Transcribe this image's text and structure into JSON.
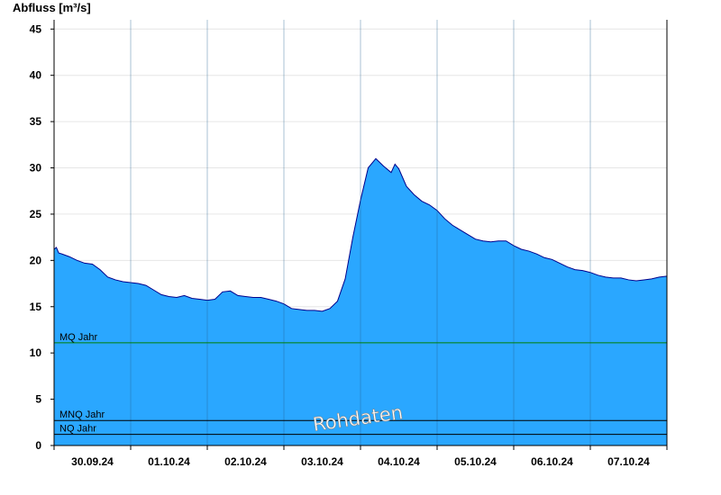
{
  "colors": {
    "fill": "#2aa7ff",
    "line": "#00008b",
    "grid": "#e6e6e6",
    "mq_line": "#008000",
    "ref_line": "#000000"
  },
  "chart_data": {
    "type": "area",
    "ylabel": "Abfluss [m³/s]",
    "ylim": [
      0,
      46
    ],
    "yticks": [
      0,
      5,
      10,
      15,
      20,
      25,
      30,
      35,
      40,
      45
    ],
    "xlim": [
      0,
      8
    ],
    "x_tick_labels": [
      "30.09.24",
      "01.10.24",
      "02.10.24",
      "03.10.24",
      "04.10.24",
      "05.10.24",
      "06.10.24",
      "07.10.24"
    ],
    "grid": true,
    "watermark": "Rohdaten",
    "reference_lines": [
      {
        "label": "MQ Jahr",
        "value": 11.1,
        "color": "#008000"
      },
      {
        "label": "MNQ Jahr",
        "value": 2.7,
        "color": "#000000"
      },
      {
        "label": "NQ Jahr",
        "value": 1.2,
        "color": "#000000"
      }
    ],
    "series": [
      {
        "x": [
          0.0,
          0.03,
          0.06,
          0.1,
          0.2,
          0.3,
          0.4,
          0.5,
          0.6,
          0.7,
          0.8,
          0.9,
          1.0,
          1.1,
          1.2,
          1.3,
          1.4,
          1.5,
          1.6,
          1.7,
          1.8,
          1.9,
          2.0,
          2.1,
          2.2,
          2.3,
          2.4,
          2.5,
          2.6,
          2.7,
          2.8,
          2.9,
          3.0,
          3.1,
          3.2,
          3.3,
          3.4,
          3.5,
          3.6,
          3.7,
          3.8,
          3.9,
          4.0,
          4.1,
          4.2,
          4.3,
          4.4,
          4.45,
          4.5,
          4.6,
          4.7,
          4.8,
          4.9,
          5.0,
          5.1,
          5.2,
          5.3,
          5.4,
          5.5,
          5.6,
          5.7,
          5.8,
          5.9,
          6.0,
          6.1,
          6.2,
          6.3,
          6.4,
          6.5,
          6.6,
          6.7,
          6.8,
          6.9,
          7.0,
          7.1,
          7.2,
          7.3,
          7.4,
          7.5,
          7.6,
          7.7,
          7.8,
          7.9,
          8.0
        ],
        "y": [
          21.2,
          21.4,
          20.8,
          20.7,
          20.4,
          20.0,
          19.7,
          19.6,
          19.0,
          18.2,
          17.9,
          17.7,
          17.6,
          17.5,
          17.3,
          16.8,
          16.3,
          16.1,
          16.0,
          16.2,
          15.9,
          15.8,
          15.7,
          15.8,
          16.6,
          16.7,
          16.2,
          16.1,
          16.0,
          16.0,
          15.8,
          15.6,
          15.3,
          14.8,
          14.7,
          14.6,
          14.6,
          14.5,
          14.8,
          15.6,
          18.0,
          22.5,
          26.5,
          30.0,
          31.0,
          30.2,
          29.5,
          30.4,
          29.9,
          28.0,
          27.1,
          26.4,
          26.0,
          25.4,
          24.5,
          23.8,
          23.3,
          22.8,
          22.3,
          22.1,
          22.0,
          22.1,
          22.1,
          21.6,
          21.2,
          21.0,
          20.7,
          20.3,
          20.1,
          19.7,
          19.3,
          19.0,
          18.9,
          18.7,
          18.4,
          18.2,
          18.1,
          18.1,
          17.9,
          17.8,
          17.9,
          18.0,
          18.2,
          18.3
        ]
      }
    ]
  }
}
